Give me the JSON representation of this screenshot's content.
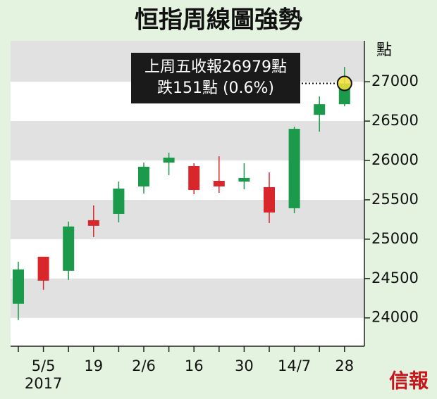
{
  "chart_data": {
    "type": "candlestick",
    "title": "恒指周線圖強勢",
    "categories": [
      null,
      "5/5",
      null,
      "19",
      null,
      "2/6",
      null,
      "16",
      null,
      "30",
      null,
      "14/7",
      null,
      "28"
    ],
    "x_year": "2017",
    "open": [
      24179,
      24777,
      24598,
      25241,
      25321,
      25670,
      25973,
      25929,
      25741,
      25732,
      25661,
      25393,
      26580,
      26714
    ],
    "high": [
      24714,
      24777,
      25223,
      25429,
      25732,
      25973,
      26098,
      25964,
      26054,
      25964,
      25848,
      26429,
      26813,
      27188
    ],
    "low": [
      23973,
      24357,
      24482,
      25027,
      25214,
      25580,
      25813,
      25571,
      25589,
      25634,
      25205,
      25330,
      26366,
      26688
    ],
    "close": [
      24616,
      24473,
      25161,
      25170,
      25643,
      25920,
      26036,
      25625,
      25670,
      25777,
      25339,
      26402,
      26714,
      26979
    ],
    "up_color": "#1b9a4b",
    "down_color": "#d8262b",
    "highlight_color": "#f5e23a",
    "ylim": [
      23640,
      27520
    ],
    "yticks": [
      24000,
      24500,
      25000,
      25500,
      26000,
      26500,
      27000
    ],
    "y_unit": "點",
    "annotation": [
      "上周五收報26979點",
      "跌151點 (0.6%)"
    ],
    "logo": "信報"
  }
}
